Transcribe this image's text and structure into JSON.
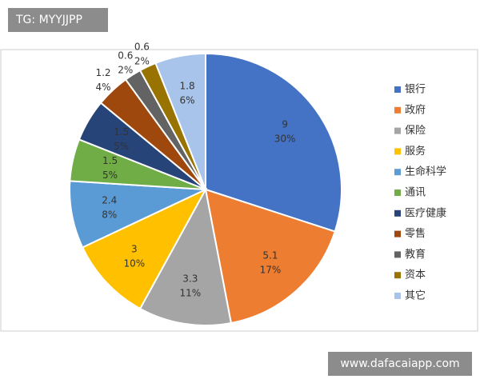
{
  "chart_data": {
    "type": "pie",
    "categories": [
      "银行",
      "政府",
      "保险",
      "服务",
      "生命科学",
      "通讯",
      "医疗健康",
      "零售",
      "教育",
      "资本",
      "其它"
    ],
    "values": [
      9,
      5.1,
      3.3,
      3,
      2.4,
      1.5,
      1.5,
      1.2,
      0.6,
      0.6,
      1.8
    ],
    "shares": {
      "values": [
        30,
        17,
        11,
        10,
        8,
        5,
        5,
        4,
        2,
        2,
        6
      ],
      "value_labels": [
        "30%",
        "17%",
        "11%",
        "10%",
        "8%",
        "5%",
        "5%",
        "4%",
        "2%",
        "2%",
        "6%"
      ]
    },
    "colors": [
      "#4472c4",
      "#ed7d31",
      "#a5a5a5",
      "#ffc000",
      "#5b9bd5",
      "#70ad47",
      "#264478",
      "#9e480e",
      "#636363",
      "#997300",
      "#a9c4eb"
    ],
    "legend": "right"
  },
  "watermarks": {
    "top": "TG: MYYJJPP",
    "bottom": "www.dafacaiapp.com"
  }
}
